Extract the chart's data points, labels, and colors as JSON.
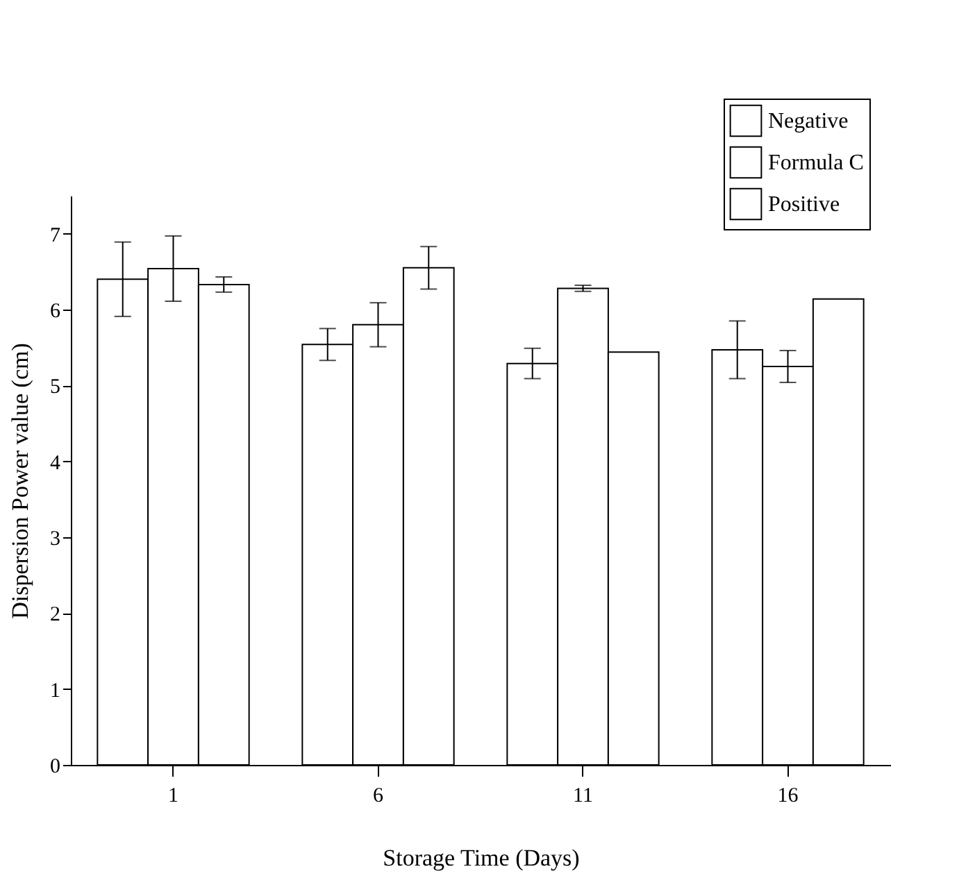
{
  "chart_data": {
    "type": "bar",
    "xlabel": "Storage Time (Days)",
    "ylabel": "Dispersion Power value (cm)",
    "categories": [
      "1",
      "6",
      "11",
      "16"
    ],
    "series": [
      {
        "name": "Negative",
        "color": "#ffffff",
        "values": [
          6.4,
          5.54,
          5.29,
          5.47
        ],
        "errors": [
          0.49,
          0.21,
          0.2,
          0.38
        ]
      },
      {
        "name": "Formula C",
        "color": "#ffffff",
        "values": [
          6.54,
          5.8,
          6.28,
          5.25
        ],
        "errors": [
          0.43,
          0.29,
          0.04,
          0.21
        ]
      },
      {
        "name": "Positive",
        "color": "#ffffff",
        "values": [
          6.33,
          6.55,
          5.44,
          6.14
        ],
        "errors": [
          0.1,
          0.28,
          null,
          null
        ]
      }
    ],
    "ylim": [
      0,
      7.5
    ],
    "yticks": [
      0,
      1,
      2,
      3,
      4,
      5,
      6,
      7
    ],
    "grid": false,
    "legend": "top right"
  }
}
